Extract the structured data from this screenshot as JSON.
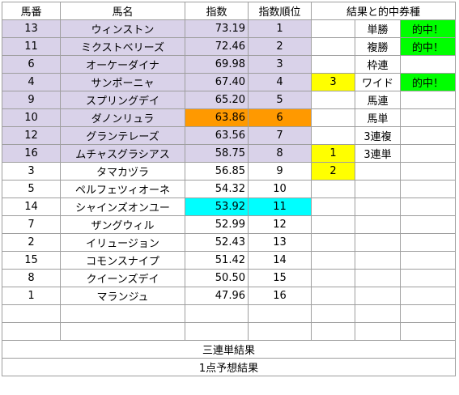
{
  "header": {
    "col_no": "馬番",
    "col_name": "馬名",
    "col_index": "指数",
    "col_rank": "指数順位",
    "col_results": "結果と的中券種"
  },
  "rows": [
    {
      "no": "13",
      "name": "ウィンストン",
      "index": "73.19",
      "rank": "1",
      "mark": "",
      "bet": "単勝",
      "hit": "的中！"
    },
    {
      "no": "11",
      "name": "ミクストベリーズ",
      "index": "72.46",
      "rank": "2",
      "mark": "",
      "bet": "複勝",
      "hit": "的中！"
    },
    {
      "no": "6",
      "name": "オーケーダイナ",
      "index": "69.98",
      "rank": "3",
      "mark": "",
      "bet": "枠連",
      "hit": ""
    },
    {
      "no": "4",
      "name": "サンポーニャ",
      "index": "67.40",
      "rank": "4",
      "mark": "3",
      "bet": "ワイド",
      "hit": "的中！"
    },
    {
      "no": "9",
      "name": "スプリングデイ",
      "index": "65.20",
      "rank": "5",
      "mark": "",
      "bet": "馬連",
      "hit": ""
    },
    {
      "no": "10",
      "name": "ダノンリュラ",
      "index": "63.86",
      "rank": "6",
      "mark": "",
      "bet": "馬単",
      "hit": ""
    },
    {
      "no": "12",
      "name": "グランテレーズ",
      "index": "63.56",
      "rank": "7",
      "mark": "",
      "bet": "3連複",
      "hit": ""
    },
    {
      "no": "16",
      "name": "ムチャスグラシアス",
      "index": "58.75",
      "rank": "8",
      "mark": "1",
      "bet": "3連単",
      "hit": ""
    },
    {
      "no": "3",
      "name": "タマカヅラ",
      "index": "56.85",
      "rank": "9",
      "mark": "2",
      "bet": "",
      "hit": ""
    },
    {
      "no": "5",
      "name": "ペルフェツィオーネ",
      "index": "54.32",
      "rank": "10",
      "mark": "",
      "bet": "",
      "hit": ""
    },
    {
      "no": "14",
      "name": "シャインズオンユー",
      "index": "53.92",
      "rank": "11",
      "mark": "",
      "bet": "",
      "hit": ""
    },
    {
      "no": "7",
      "name": "ザングウィル",
      "index": "52.99",
      "rank": "12",
      "mark": "",
      "bet": "",
      "hit": ""
    },
    {
      "no": "2",
      "name": "イリュージョン",
      "index": "52.43",
      "rank": "13",
      "mark": "",
      "bet": "",
      "hit": ""
    },
    {
      "no": "15",
      "name": "コモンスナイプ",
      "index": "51.42",
      "rank": "14",
      "mark": "",
      "bet": "",
      "hit": ""
    },
    {
      "no": "8",
      "name": "クイーンズデイ",
      "index": "50.50",
      "rank": "15",
      "mark": "",
      "bet": "",
      "hit": ""
    },
    {
      "no": "1",
      "name": "マランジュ",
      "index": "47.96",
      "rank": "16",
      "mark": "",
      "bet": "",
      "hit": ""
    }
  ],
  "footer": {
    "trifecta_result": "三連単結果",
    "one_point_result": "1点予想結果"
  },
  "colors": {
    "lavender": "#d9d2e9",
    "orange": "#ff9900",
    "cyan": "#00ffff",
    "yellow": "#ffff00",
    "green": "#00ff00"
  }
}
